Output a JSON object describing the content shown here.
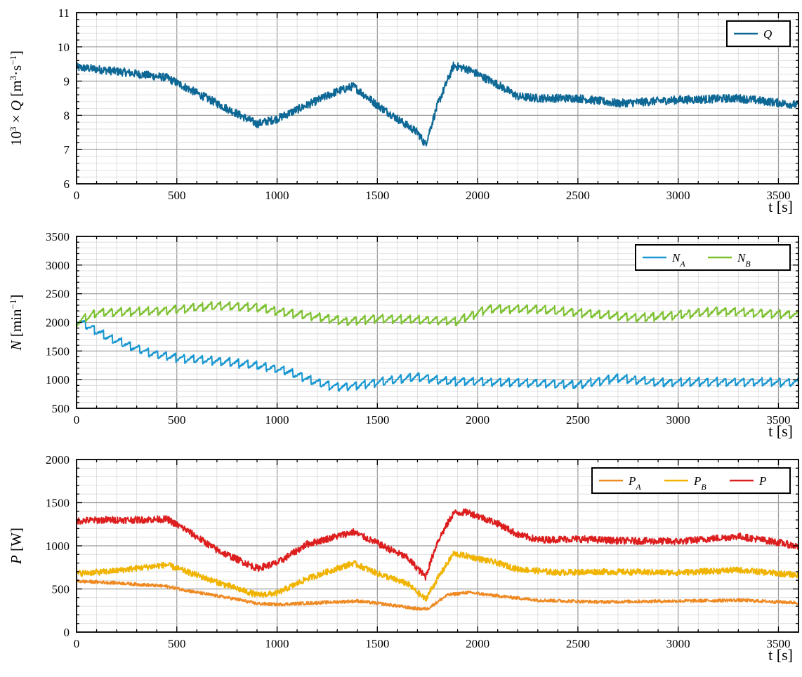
{
  "chart_data": [
    {
      "type": "line",
      "xlabel": "t [s]",
      "ylabel": "10³ × Q [m³·s⁻¹]",
      "xlim": [
        0,
        3600
      ],
      "ylim": [
        6,
        11
      ],
      "x_ticks": [
        "0",
        "500",
        "1000",
        "1500",
        "2000",
        "2500",
        "3000",
        "3500"
      ],
      "y_ticks": [
        "6",
        "7",
        "8",
        "9",
        "10",
        "11"
      ],
      "grid": true,
      "legend_position": "top-right",
      "series": [
        {
          "name": "Q",
          "color": "#0e6896",
          "noise": 0.12,
          "x": [
            0,
            100,
            250,
            450,
            550,
            700,
            900,
            1000,
            1150,
            1300,
            1380,
            1500,
            1600,
            1700,
            1740,
            1800,
            1880,
            1950,
            2100,
            2200,
            2300,
            2500,
            2700,
            3000,
            3300,
            3600
          ],
          "y": [
            9.4,
            9.35,
            9.25,
            9.1,
            8.8,
            8.35,
            7.75,
            7.9,
            8.3,
            8.7,
            8.85,
            8.3,
            7.9,
            7.5,
            7.15,
            8.3,
            9.45,
            9.35,
            8.9,
            8.55,
            8.5,
            8.5,
            8.35,
            8.45,
            8.5,
            8.3
          ]
        }
      ]
    },
    {
      "type": "line",
      "xlabel": "t [s]",
      "ylabel": "N [min⁻¹]",
      "xlim": [
        0,
        3600
      ],
      "ylim": [
        500,
        3500
      ],
      "x_ticks": [
        "0",
        "500",
        "1000",
        "1500",
        "2000",
        "2500",
        "3000",
        "3500"
      ],
      "y_ticks": [
        "500",
        "1000",
        "1500",
        "2000",
        "2500",
        "3000",
        "3500"
      ],
      "grid": true,
      "legend_position": "top-right",
      "series": [
        {
          "name": "N_A",
          "color": "#1797d1",
          "saw": 110,
          "x": [
            0,
            150,
            350,
            500,
            700,
            900,
            1050,
            1200,
            1300,
            1400,
            1550,
            1700,
            1850,
            2000,
            2300,
            2500,
            2700,
            2900,
            3100,
            3400,
            3600
          ],
          "y": [
            2050,
            1750,
            1480,
            1380,
            1330,
            1250,
            1150,
            950,
            870,
            900,
            980,
            1050,
            970,
            970,
            940,
            910,
            1030,
            950,
            960,
            960,
            950
          ]
        },
        {
          "name": "N_B",
          "color": "#7cc12f",
          "saw": 110,
          "x": [
            0,
            100,
            400,
            700,
            900,
            1050,
            1250,
            1350,
            1500,
            1900,
            2050,
            2300,
            2500,
            2800,
            3000,
            3200,
            3600
          ],
          "y": [
            2000,
            2170,
            2200,
            2290,
            2260,
            2170,
            2070,
            2020,
            2070,
            2020,
            2240,
            2230,
            2170,
            2080,
            2130,
            2200,
            2130
          ]
        }
      ]
    },
    {
      "type": "line",
      "xlabel": "t [s]",
      "ylabel": "P [W]",
      "xlim": [
        0,
        3600
      ],
      "ylim": [
        0,
        2000
      ],
      "x_ticks": [
        "0",
        "500",
        "1000",
        "1500",
        "2000",
        "2500",
        "3000",
        "3500"
      ],
      "y_ticks": [
        "0",
        "500",
        "1000",
        "1500",
        "2000"
      ],
      "grid": true,
      "legend_position": "top-right",
      "series": [
        {
          "name": "P_A",
          "color": "#ef8a23",
          "noise": 18,
          "x": [
            0,
            200,
            450,
            600,
            800,
            900,
            1000,
            1200,
            1400,
            1550,
            1700,
            1750,
            1850,
            1950,
            2100,
            2300,
            2600,
            3000,
            3300,
            3600
          ],
          "y": [
            590,
            570,
            530,
            460,
            380,
            330,
            320,
            340,
            360,
            320,
            270,
            270,
            430,
            460,
            420,
            370,
            350,
            360,
            370,
            340
          ]
        },
        {
          "name": "P_B",
          "color": "#f0b400",
          "noise": 35,
          "x": [
            0,
            150,
            450,
            550,
            700,
            900,
            1000,
            1150,
            1380,
            1500,
            1650,
            1740,
            1800,
            1880,
            1950,
            2100,
            2200,
            2400,
            2600,
            3000,
            3300,
            3600
          ],
          "y": [
            680,
            700,
            780,
            700,
            580,
            430,
            450,
            620,
            800,
            680,
            560,
            380,
            620,
            910,
            880,
            800,
            730,
            690,
            700,
            690,
            720,
            660
          ]
        },
        {
          "name": "P",
          "color": "#dd1e1e",
          "noise": 40,
          "x": [
            0,
            150,
            300,
            450,
            550,
            700,
            900,
            1000,
            1150,
            1380,
            1500,
            1650,
            1740,
            1800,
            1880,
            1950,
            2100,
            2200,
            2300,
            2500,
            2700,
            3000,
            3300,
            3500,
            3600
          ],
          "y": [
            1290,
            1300,
            1300,
            1310,
            1180,
            950,
            740,
            800,
            1020,
            1160,
            1030,
            860,
            640,
            1050,
            1380,
            1390,
            1260,
            1130,
            1070,
            1080,
            1060,
            1050,
            1110,
            1040,
            990
          ]
        }
      ]
    }
  ]
}
